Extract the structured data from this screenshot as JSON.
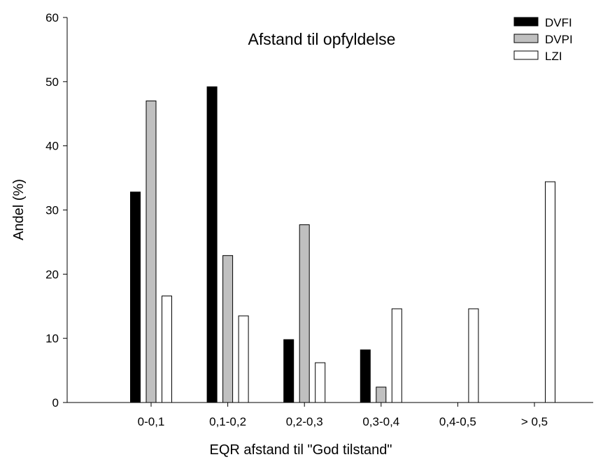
{
  "chart_data": {
    "type": "bar",
    "title": "Afstand til opfyldelse",
    "xlabel": "EQR afstand til \"God tilstand\"",
    "ylabel": "Andel (%)",
    "ylim": [
      0,
      60
    ],
    "yticks": [
      0,
      10,
      20,
      30,
      40,
      50,
      60
    ],
    "categories": [
      "0-0,1",
      "0,1-0,2",
      "0,2-0,3",
      "0,3-0,4",
      "0,4-0,5",
      "> 0,5"
    ],
    "series": [
      {
        "name": "DVFI",
        "color": "#000000",
        "values": [
          32.8,
          49.2,
          9.8,
          8.2,
          0,
          0
        ]
      },
      {
        "name": "DVPI",
        "color": "#c0c0c0",
        "values": [
          47.0,
          22.9,
          27.7,
          2.4,
          0,
          0
        ]
      },
      {
        "name": "LZI",
        "color": "#ffffff",
        "values": [
          16.6,
          13.5,
          6.2,
          14.6,
          14.6,
          34.4
        ]
      }
    ],
    "legend_position": "top-right",
    "grid": false
  }
}
